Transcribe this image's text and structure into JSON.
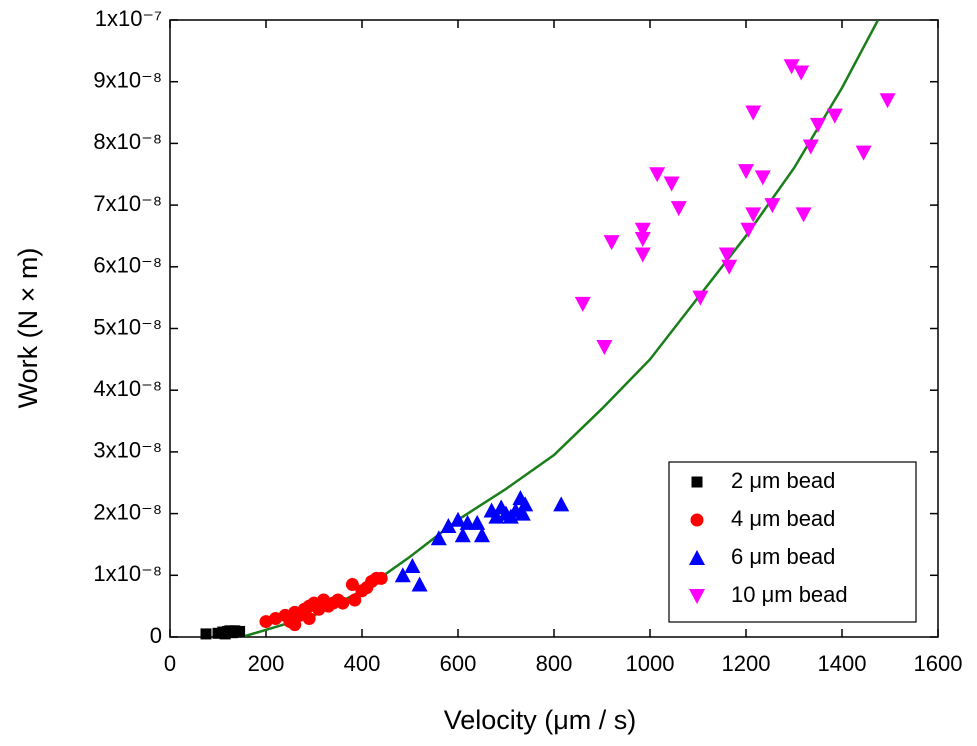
{
  "chart_data": {
    "type": "scatter",
    "xlabel": "Velocity (μm / s)",
    "ylabel": "Work (N × m)",
    "xlim": [
      0,
      1600
    ],
    "xticks": [
      0,
      200,
      400,
      600,
      800,
      1000,
      1200,
      1400,
      1600
    ],
    "ylim": [
      0,
      1e-07
    ],
    "yticks": [
      0,
      {
        "value": 1e-08,
        "label": "1x10⁻⁸"
      },
      {
        "value": 2e-08,
        "label": "2x10⁻⁸"
      },
      {
        "value": 3e-08,
        "label": "3x10⁻⁸"
      },
      {
        "value": 4e-08,
        "label": "4x10⁻⁸"
      },
      {
        "value": 5e-08,
        "label": "5x10⁻⁸"
      },
      {
        "value": 6e-08,
        "label": "6x10⁻⁸"
      },
      {
        "value": 7e-08,
        "label": "7x10⁻⁸"
      },
      {
        "value": 8e-08,
        "label": "8x10⁻⁸"
      },
      {
        "value": 9e-08,
        "label": "9x10⁻⁸"
      },
      {
        "value": 1e-07,
        "label": "1x10⁻⁷"
      }
    ],
    "legend": "lower right",
    "series": [
      {
        "name": "2 μm bead",
        "color": "#000000",
        "marker": "square",
        "x": [
          75,
          100,
          110,
          115,
          120,
          125,
          130,
          135,
          140,
          145
        ],
        "values": [
          5e-10,
          6e-10,
          8e-10,
          5e-10,
          9e-10,
          1e-09,
          7e-10,
          1e-09,
          8e-10,
          9e-10
        ]
      },
      {
        "name": "4 μm bead",
        "color": "#ff0000",
        "marker": "circle",
        "x": [
          200,
          220,
          240,
          250,
          260,
          260,
          270,
          280,
          290,
          290,
          300,
          310,
          320,
          330,
          340,
          350,
          360,
          380,
          385,
          400,
          410,
          420,
          430,
          440
        ],
        "values": [
          2.5e-09,
          3e-09,
          3.5e-09,
          2.5e-09,
          4e-09,
          2e-09,
          3.5e-09,
          4.5e-09,
          5e-09,
          3e-09,
          5.5e-09,
          4.5e-09,
          6e-09,
          5e-09,
          5.5e-09,
          6e-09,
          5.5e-09,
          8.5e-09,
          6e-09,
          7.5e-09,
          8e-09,
          9e-09,
          9.5e-09,
          9.5e-09
        ]
      },
      {
        "name": "6 μm bead",
        "color": "#0000ff",
        "marker": "triangle-up",
        "x": [
          485,
          505,
          520,
          560,
          580,
          600,
          610,
          620,
          640,
          650,
          670,
          680,
          690,
          700,
          710,
          720,
          730,
          735,
          740,
          815
        ],
        "values": [
          1e-08,
          1.15e-08,
          8.5e-09,
          1.6e-08,
          1.8e-08,
          1.9e-08,
          1.65e-08,
          1.85e-08,
          1.85e-08,
          1.65e-08,
          2.05e-08,
          1.95e-08,
          2.1e-08,
          2e-08,
          1.95e-08,
          2.05e-08,
          2.25e-08,
          2e-08,
          2.15e-08,
          2.15e-08
        ]
      },
      {
        "name": "10 μm bead",
        "color": "#ff00ff",
        "marker": "triangle-down",
        "x": [
          860,
          905,
          920,
          985,
          985,
          985,
          1015,
          1045,
          1060,
          1105,
          1160,
          1165,
          1200,
          1205,
          1215,
          1215,
          1235,
          1255,
          1295,
          1315,
          1320,
          1335,
          1350,
          1385,
          1445,
          1495
        ],
        "values": [
          5.4e-08,
          4.7e-08,
          6.4e-08,
          6.6e-08,
          6.45e-08,
          6.2e-08,
          7.5e-08,
          7.35e-08,
          6.95e-08,
          5.5e-08,
          6.2e-08,
          6e-08,
          7.55e-08,
          6.6e-08,
          8.5e-08,
          6.85e-08,
          7.45e-08,
          7e-08,
          9.25e-08,
          9.15e-08,
          6.85e-08,
          7.95e-08,
          8.3e-08,
          8.45e-08,
          7.85e-08,
          8.7e-08
        ]
      }
    ],
    "fit": {
      "color": "#1a7f1a",
      "x": [
        150,
        300,
        400,
        500,
        600,
        700,
        800,
        900,
        1000,
        1100,
        1200,
        1300,
        1400,
        1475
      ],
      "values": [
        0,
        3.5e-09,
        7.5e-09,
        1.3e-08,
        1.9e-08,
        2.4e-08,
        2.95e-08,
        3.7e-08,
        4.5e-08,
        5.5e-08,
        6.5e-08,
        7.6e-08,
        8.9e-08,
        1e-07
      ]
    }
  }
}
